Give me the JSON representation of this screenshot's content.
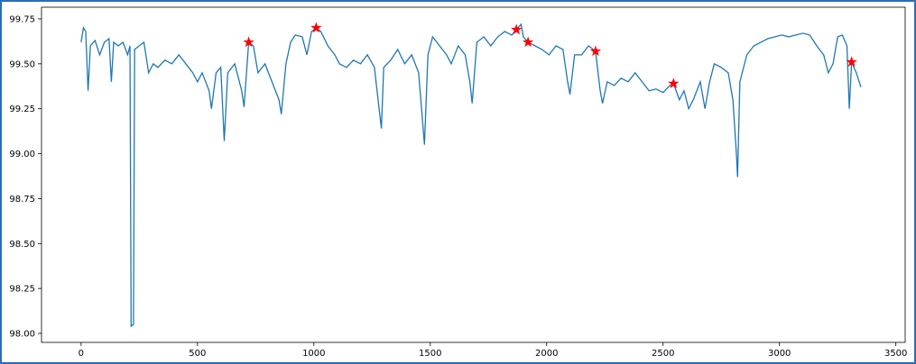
{
  "chart_data": {
    "type": "line",
    "xlim": [
      -170,
      3540
    ],
    "ylim": [
      97.95,
      99.815
    ],
    "xticks": [
      0,
      500,
      1000,
      1500,
      2000,
      2500,
      3000,
      3500
    ],
    "yticks": [
      98.25,
      {
        "value": 98.5,
        "label": "98.50"
      },
      98.75,
      {
        "value": 99,
        "label": "99.00"
      },
      99.25,
      {
        "value": 99.5,
        "label": "99.50"
      },
      99.75,
      {
        "value": 98,
        "label": "98.00"
      }
    ],
    "series": [
      {
        "color": "#1f77b4",
        "marker": "none",
        "x": [
          0,
          10,
          20,
          30,
          40,
          60,
          80,
          100,
          120,
          130,
          140,
          160,
          180,
          200,
          210,
          215,
          225,
          230,
          250,
          270,
          290,
          310,
          330,
          360,
          390,
          420,
          450,
          480,
          500,
          520,
          550,
          560,
          580,
          600,
          615,
          630,
          660,
          690,
          700,
          720,
          740,
          760,
          790,
          820,
          850,
          860,
          880,
          900,
          920,
          950,
          970,
          990,
          1010,
          1030,
          1060,
          1090,
          1110,
          1140,
          1170,
          1200,
          1230,
          1260,
          1290,
          1300,
          1330,
          1360,
          1390,
          1420,
          1450,
          1475,
          1490,
          1510,
          1540,
          1570,
          1590,
          1620,
          1650,
          1670,
          1680,
          1700,
          1730,
          1760,
          1790,
          1820,
          1850,
          1870,
          1890,
          1900,
          1920,
          1950,
          1980,
          2010,
          2040,
          2070,
          2090,
          2100,
          2120,
          2150,
          2180,
          2210,
          2230,
          2240,
          2260,
          2290,
          2320,
          2350,
          2380,
          2410,
          2440,
          2470,
          2500,
          2530,
          2545,
          2570,
          2590,
          2610,
          2630,
          2660,
          2680,
          2700,
          2720,
          2750,
          2780,
          2800,
          2815,
          2820,
          2830,
          2860,
          2890,
          2920,
          2950,
          2980,
          3010,
          3040,
          3070,
          3100,
          3130,
          3160,
          3190,
          3210,
          3230,
          3250,
          3270,
          3290,
          3300,
          3310,
          3330,
          3350
        ],
        "values": [
          99.62,
          99.7,
          99.68,
          99.35,
          99.6,
          99.63,
          99.55,
          99.62,
          99.64,
          99.4,
          99.62,
          99.6,
          99.62,
          99.55,
          99.6,
          98.04,
          98.05,
          99.58,
          99.6,
          99.62,
          99.45,
          99.5,
          99.48,
          99.52,
          99.5,
          99.55,
          99.5,
          99.45,
          99.4,
          99.45,
          99.35,
          99.25,
          99.45,
          99.48,
          99.07,
          99.45,
          99.5,
          99.35,
          99.26,
          99.62,
          99.6,
          99.45,
          99.5,
          99.4,
          99.3,
          99.22,
          99.5,
          99.62,
          99.66,
          99.65,
          99.55,
          99.68,
          99.7,
          99.68,
          99.6,
          99.55,
          99.5,
          99.48,
          99.52,
          99.5,
          99.55,
          99.48,
          99.14,
          99.48,
          99.52,
          99.58,
          99.5,
          99.55,
          99.45,
          99.05,
          99.55,
          99.65,
          99.6,
          99.55,
          99.5,
          99.6,
          99.55,
          99.4,
          99.28,
          99.62,
          99.65,
          99.6,
          99.65,
          99.68,
          99.66,
          99.69,
          99.72,
          99.65,
          99.62,
          99.6,
          99.58,
          99.55,
          99.6,
          99.58,
          99.4,
          99.33,
          99.55,
          99.55,
          99.6,
          99.57,
          99.35,
          99.28,
          99.4,
          99.38,
          99.42,
          99.4,
          99.45,
          99.4,
          99.35,
          99.36,
          99.34,
          99.38,
          99.39,
          99.3,
          99.35,
          99.25,
          99.3,
          99.4,
          99.25,
          99.4,
          99.5,
          99.48,
          99.45,
          99.3,
          99.0,
          98.87,
          99.4,
          99.55,
          99.6,
          99.62,
          99.64,
          99.65,
          99.66,
          99.65,
          99.66,
          99.67,
          99.66,
          99.6,
          99.55,
          99.45,
          99.5,
          99.65,
          99.66,
          99.6,
          99.25,
          99.51,
          99.45,
          99.37
        ]
      },
      {
        "color": "#ff0000",
        "marker": "star",
        "x": [
          720,
          1010,
          1870,
          1920,
          2210,
          2545,
          3310
        ],
        "values": [
          99.62,
          99.7,
          99.69,
          99.62,
          99.57,
          99.39,
          99.51
        ]
      }
    ]
  }
}
